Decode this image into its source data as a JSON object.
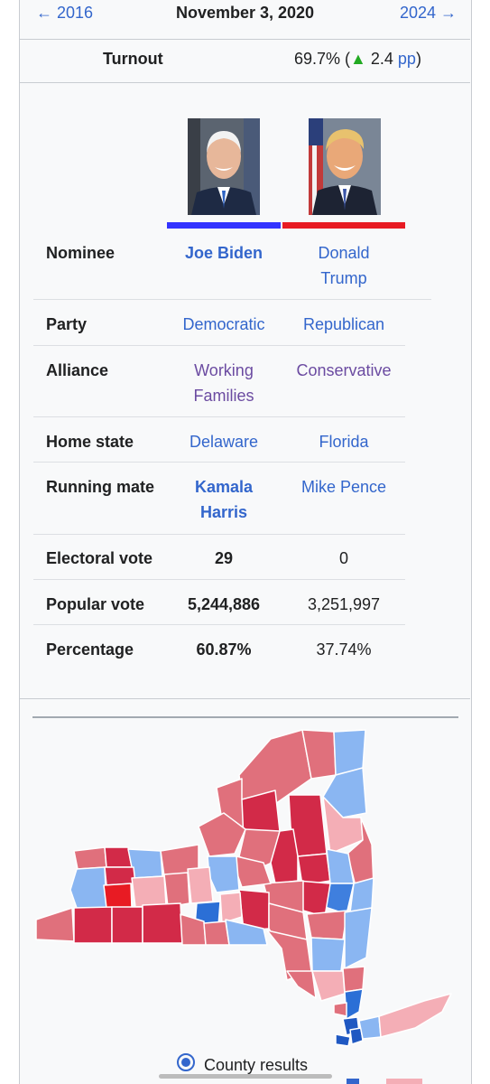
{
  "nav": {
    "prev": "← 2016",
    "date": "November 3, 2020",
    "next": "2024 →"
  },
  "turnout": {
    "label": "Turnout",
    "prefix": "69.7% (",
    "arrow": "▲",
    "change": " 2.4 ",
    "unit": "pp",
    "suffix": ")"
  },
  "colors": {
    "democratic": "#3333ff",
    "republican": "#e81b23",
    "link": "#3366cc"
  },
  "candidates": [
    {
      "portrait": "joe-biden-portrait",
      "party_color": "#3333ff"
    },
    {
      "portrait": "donald-trump-portrait",
      "party_color": "#e81b23"
    }
  ],
  "rows": {
    "nominee": {
      "label": "Nominee",
      "biden": [
        "Joe Biden"
      ],
      "trump": [
        "Donald",
        "Trump"
      ]
    },
    "party": {
      "label": "Party",
      "biden": "Democratic",
      "trump": "Republican"
    },
    "alliance": {
      "label": "Alliance",
      "biden": [
        "Working",
        "Families"
      ],
      "trump": "Conservative"
    },
    "home_state": {
      "label": "Home state",
      "biden": "Delaware",
      "trump": "Florida"
    },
    "running_mate": {
      "label": "Running mate",
      "biden": [
        "Kamala",
        "Harris"
      ],
      "trump": "Mike Pence"
    },
    "electoral_vote": {
      "label": "Electoral vote",
      "biden": "29",
      "trump": "0"
    },
    "popular_vote": {
      "label": "Popular vote",
      "biden": "5,244,886",
      "trump": "3,251,997"
    },
    "percentage": {
      "label": "Percentage",
      "biden": "60.87%",
      "trump": "37.74%"
    }
  },
  "map": {
    "subject": "new-york-county-results-map"
  },
  "map_option": {
    "label": "County results",
    "selected": true
  }
}
